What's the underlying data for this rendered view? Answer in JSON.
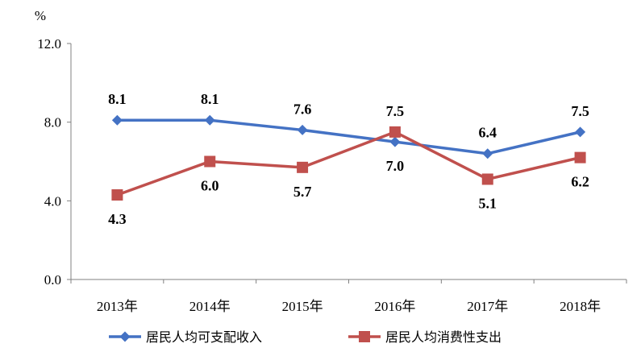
{
  "chart_data": {
    "type": "line",
    "unit_label": "%",
    "categories": [
      "2013年",
      "2014年",
      "2015年",
      "2016年",
      "2017年",
      "2018年"
    ],
    "ylim": [
      0,
      12
    ],
    "yticks": [
      "0.0",
      "4.0",
      "8.0",
      "12.0"
    ],
    "grid": false,
    "legend_position": "bottom",
    "series": [
      {
        "name": "居民人均可支配收入",
        "color": "#4472C4",
        "marker": "diamond",
        "values": [
          8.1,
          8.1,
          7.6,
          7.0,
          6.4,
          7.5
        ],
        "labels": [
          "8.1",
          "8.1",
          "7.6",
          "7.0",
          "6.4",
          "7.5"
        ]
      },
      {
        "name": "居民人均消费性支出",
        "color": "#C0504D",
        "marker": "square",
        "values": [
          4.3,
          6.0,
          5.7,
          7.5,
          5.1,
          6.2
        ],
        "labels": [
          "4.3",
          "6.0",
          "5.7",
          "7.5",
          "5.1",
          "6.2"
        ]
      }
    ]
  }
}
